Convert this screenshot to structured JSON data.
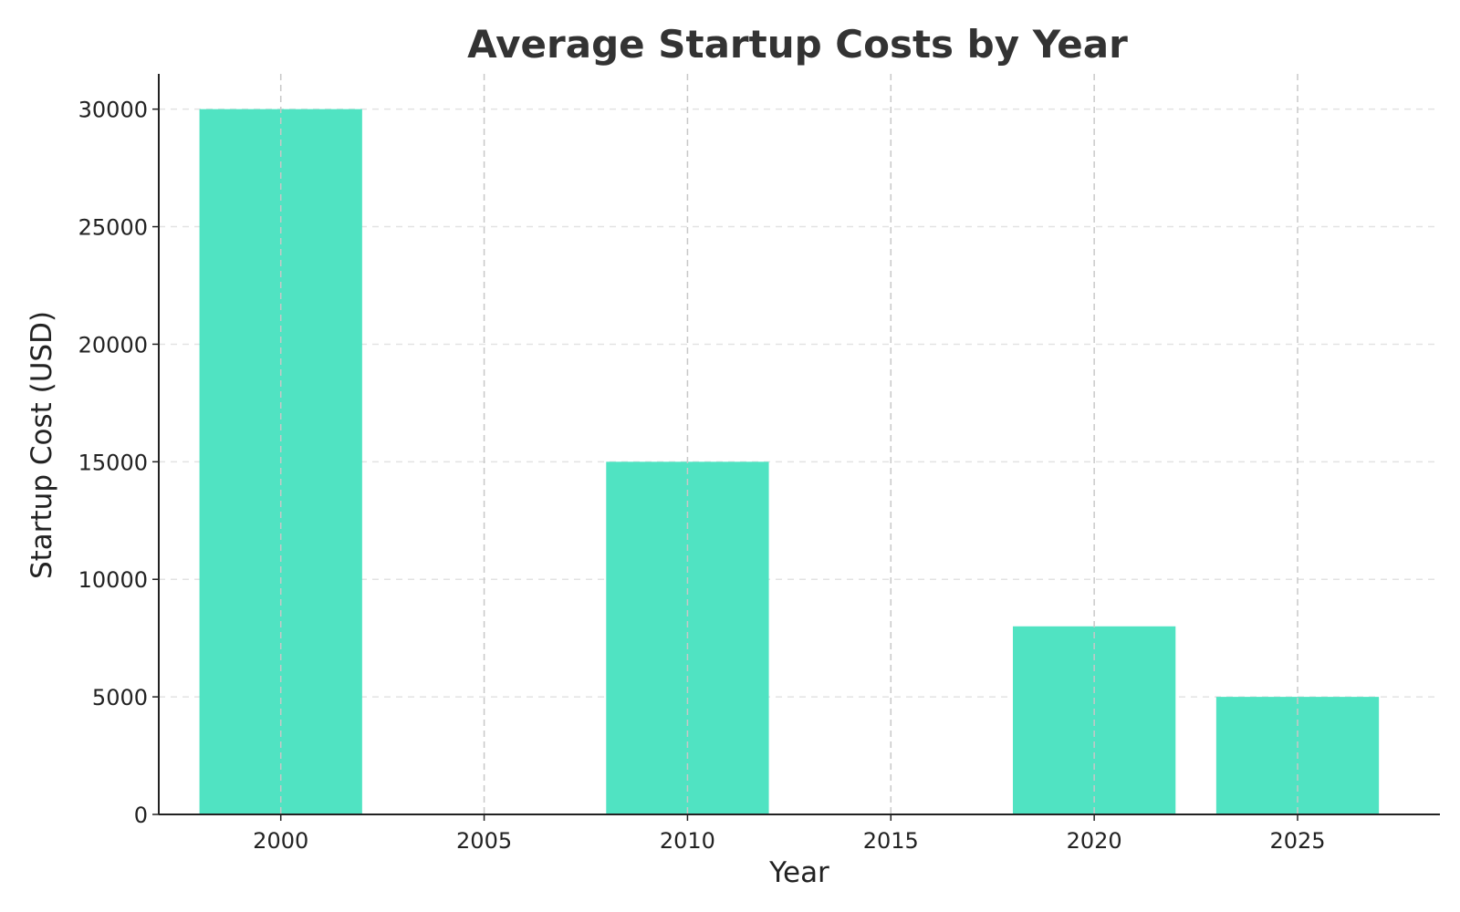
{
  "chart_data": {
    "type": "bar",
    "title": "Average Startup Costs by Year",
    "xlabel": "Year",
    "ylabel": "Startup Cost (USD)",
    "x": [
      2000,
      2010,
      2020,
      2025
    ],
    "values": [
      30000,
      15000,
      8000,
      5000
    ],
    "bar_width": 4,
    "xlim": [
      1997,
      2028.5
    ],
    "ylim": [
      0,
      31500
    ],
    "x_ticks": [
      "2000",
      "2005",
      "2010",
      "2015",
      "2020",
      "2025"
    ],
    "y_ticks": [
      "0",
      "5000",
      "10000",
      "15000",
      "20000",
      "25000",
      "30000"
    ],
    "grid": true,
    "legend": "none",
    "bar_color": "#50E3C2"
  }
}
